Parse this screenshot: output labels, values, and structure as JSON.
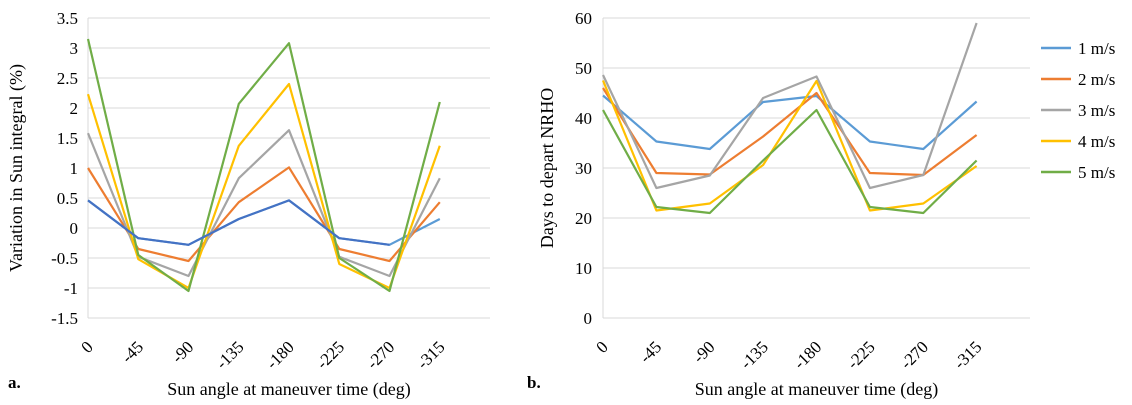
{
  "chart_data": [
    {
      "type": "line",
      "panel_label": "a.",
      "xlabel": "Sun angle at maneuver time (deg)",
      "ylabel": "Variation in Sun integral (%)",
      "categories": [
        "0",
        "-45",
        "-90",
        "-135",
        "-180",
        "-225",
        "-270",
        "-315"
      ],
      "ylim": [
        -1.5,
        3.5
      ],
      "yticks": [
        "3.5",
        "3",
        "2.5",
        "2",
        "1.5",
        "1",
        "0.5",
        "0",
        "-0.5",
        "-1",
        "-1.5"
      ],
      "grid": true,
      "legend": "none",
      "series": [
        {
          "color": "#5b9bd5",
          "values": [
            0.46,
            -0.17,
            -0.28,
            0.15,
            0.46,
            -0.17,
            -0.28,
            0.15
          ]
        },
        {
          "color": "#ed7d31",
          "values": [
            1.0,
            -0.35,
            -0.55,
            0.43,
            1.01,
            -0.35,
            -0.55,
            0.43
          ]
        },
        {
          "color": "#a5a5a5",
          "values": [
            1.58,
            -0.48,
            -0.8,
            0.83,
            1.63,
            -0.48,
            -0.8,
            0.83
          ]
        },
        {
          "color": "#ffc000",
          "values": [
            2.23,
            -0.52,
            -1.0,
            1.37,
            2.4,
            -0.6,
            -1.0,
            1.37
          ]
        },
        {
          "color": "#70ad47",
          "values": [
            3.15,
            -0.45,
            -1.05,
            2.07,
            3.08,
            -0.5,
            -1.05,
            2.1
          ]
        },
        {
          "color": "#4472c4",
          "values": [
            0.46,
            -0.17,
            -0.28,
            0.15,
            0.46,
            -0.17,
            -0.28,
            null
          ]
        }
      ]
    },
    {
      "type": "line",
      "panel_label": "b.",
      "xlabel": "Sun angle at maneuver time (deg)",
      "ylabel": "Days to depart NRHO",
      "categories": [
        "0",
        "-45",
        "-90",
        "-135",
        "-180",
        "-225",
        "-270",
        "-315"
      ],
      "ylim": [
        0,
        60
      ],
      "yticks": [
        "60",
        "50",
        "40",
        "30",
        "20",
        "10",
        "0"
      ],
      "grid": true,
      "legend": "right",
      "series": [
        {
          "name": "1 m/s",
          "color": "#5b9bd5",
          "values": [
            44.5,
            35.3,
            33.8,
            43.2,
            44.4,
            35.3,
            33.8,
            43.3
          ]
        },
        {
          "name": "2 m/s",
          "color": "#ed7d31",
          "values": [
            46,
            29,
            28.7,
            36.3,
            45,
            29,
            28.6,
            36.6
          ]
        },
        {
          "name": "3 m/s",
          "color": "#a5a5a5",
          "values": [
            48.6,
            26,
            28.5,
            44,
            48.3,
            26,
            28.6,
            59
          ]
        },
        {
          "name": "4 m/s",
          "color": "#ffc000",
          "values": [
            47.5,
            21.5,
            22.9,
            30.6,
            47.4,
            21.5,
            22.9,
            30.4
          ]
        },
        {
          "name": "5 m/s",
          "color": "#70ad47",
          "values": [
            41.6,
            22.2,
            21,
            31.5,
            41.6,
            22.2,
            21,
            31.5
          ]
        }
      ]
    }
  ]
}
